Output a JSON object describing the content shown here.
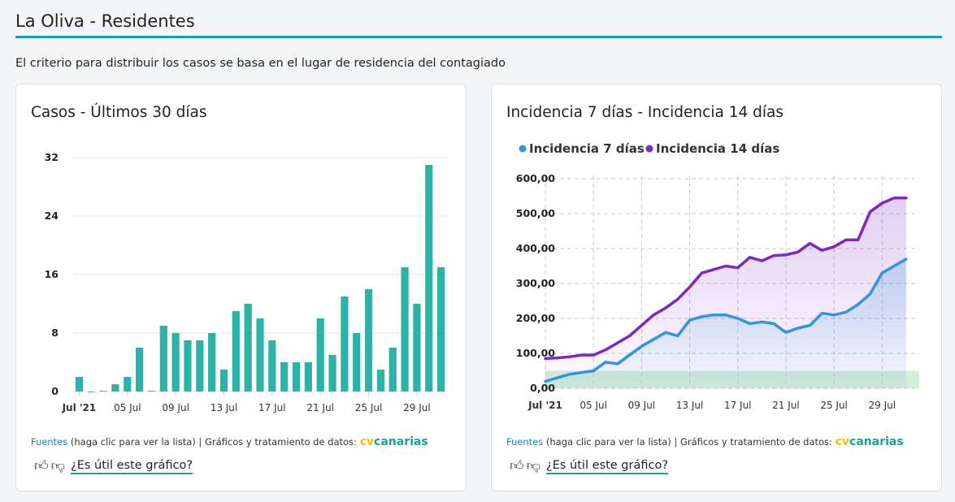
{
  "header": {
    "title": "La Oliva - Residentes",
    "subtitle": "El criterio para distribuir los casos se basa en el lugar de residencia del contagiado"
  },
  "colors": {
    "accent": "#1aa394",
    "bar": "#2ab3a6",
    "series7": "#3592e0",
    "series14": "#7b27c9",
    "threshold_band": "#c9ecd3",
    "brand_cv": "#f2c200"
  },
  "cards": {
    "cases": {
      "title": "Casos - Últimos 30 días",
      "sources_link": "Fuentes",
      "sources_text": " (haga clic para ver la lista) | Gráficos y tratamiento de datos: ",
      "brand_cv": "cv",
      "brand_canarias": "canarias",
      "feedback": "¿Es útil este gráfico?"
    },
    "incidence": {
      "title": "Incidencia 7 días - Incidencia 14 días",
      "sources_link": "Fuentes",
      "sources_text": " (haga clic para ver la lista) | Gráficos y tratamiento de datos: ",
      "brand_cv": "cv",
      "brand_canarias": "canarias",
      "feedback": "¿Es útil este gráfico?"
    }
  },
  "icons": {
    "like": "thumbs-up-icon",
    "dislike": "thumbs-down-icon"
  },
  "chart_data": [
    {
      "type": "bar",
      "title": "Casos - Últimos 30 días",
      "x": [
        "2021-07-01",
        "2021-07-02",
        "2021-07-03",
        "2021-07-04",
        "2021-07-05",
        "2021-07-06",
        "2021-07-07",
        "2021-07-08",
        "2021-07-09",
        "2021-07-10",
        "2021-07-11",
        "2021-07-12",
        "2021-07-13",
        "2021-07-14",
        "2021-07-15",
        "2021-07-16",
        "2021-07-17",
        "2021-07-18",
        "2021-07-19",
        "2021-07-20",
        "2021-07-21",
        "2021-07-22",
        "2021-07-23",
        "2021-07-24",
        "2021-07-25",
        "2021-07-26",
        "2021-07-27",
        "2021-07-28",
        "2021-07-29",
        "2021-07-30",
        "2021-07-31"
      ],
      "values": [
        2,
        0,
        0.1,
        1,
        2,
        6,
        0.1,
        9,
        8,
        7,
        7,
        8,
        3,
        11,
        12,
        10,
        7,
        4,
        4,
        4,
        10,
        5,
        13,
        8,
        14,
        3,
        6,
        17,
        12,
        31,
        17
      ],
      "yticks": [
        "0",
        "8",
        "16",
        "24",
        "32"
      ],
      "ylim": [
        0,
        32
      ],
      "xticks": [
        {
          "label": "Jul '21",
          "date": "2021-07-01"
        },
        {
          "label": "05 Jul",
          "date": "2021-07-05"
        },
        {
          "label": "09 Jul",
          "date": "2021-07-09"
        },
        {
          "label": "13 Jul",
          "date": "2021-07-13"
        },
        {
          "label": "17 Jul",
          "date": "2021-07-17"
        },
        {
          "label": "21 Jul",
          "date": "2021-07-21"
        },
        {
          "label": "25 Jul",
          "date": "2021-07-25"
        },
        {
          "label": "29 Jul",
          "date": "2021-07-29"
        }
      ],
      "grid": true
    },
    {
      "type": "line",
      "title": "Incidencia 7 días - Incidencia 14 días",
      "x": [
        "2021-07-01",
        "2021-07-02",
        "2021-07-03",
        "2021-07-04",
        "2021-07-05",
        "2021-07-06",
        "2021-07-07",
        "2021-07-08",
        "2021-07-09",
        "2021-07-10",
        "2021-07-11",
        "2021-07-12",
        "2021-07-13",
        "2021-07-14",
        "2021-07-15",
        "2021-07-16",
        "2021-07-17",
        "2021-07-18",
        "2021-07-19",
        "2021-07-20",
        "2021-07-21",
        "2021-07-22",
        "2021-07-23",
        "2021-07-24",
        "2021-07-25",
        "2021-07-26",
        "2021-07-27",
        "2021-07-28",
        "2021-07-29",
        "2021-07-30",
        "2021-07-31"
      ],
      "series": [
        {
          "name": "Incidencia 7 días",
          "values": [
            20,
            30,
            40,
            45,
            50,
            75,
            70,
            95,
            120,
            140,
            160,
            150,
            195,
            205,
            210,
            210,
            200,
            185,
            190,
            185,
            160,
            172,
            180,
            215,
            210,
            218,
            240,
            270,
            330,
            350,
            370
          ]
        },
        {
          "name": "Incidencia 14 días",
          "values": [
            85,
            87,
            90,
            95,
            95,
            110,
            130,
            150,
            180,
            210,
            230,
            255,
            290,
            330,
            340,
            350,
            345,
            375,
            365,
            380,
            382,
            390,
            415,
            395,
            405,
            425,
            425,
            505,
            530,
            545,
            545
          ]
        }
      ],
      "yticks": [
        "0,00",
        "100,00",
        "200,00",
        "300,00",
        "400,00",
        "500,00",
        "600,00"
      ],
      "ylim": [
        0,
        600
      ],
      "threshold_band": [
        0,
        50
      ],
      "xticks": [
        {
          "label": "Jul '21",
          "date": "2021-07-01"
        },
        {
          "label": "05 Jul",
          "date": "2021-07-05"
        },
        {
          "label": "09 Jul",
          "date": "2021-07-09"
        },
        {
          "label": "13 Jul",
          "date": "2021-07-13"
        },
        {
          "label": "17 Jul",
          "date": "2021-07-17"
        },
        {
          "label": "21 Jul",
          "date": "2021-07-21"
        },
        {
          "label": "25 Jul",
          "date": "2021-07-25"
        },
        {
          "label": "29 Jul",
          "date": "2021-07-29"
        }
      ],
      "legend": "top-left",
      "grid": true
    }
  ]
}
